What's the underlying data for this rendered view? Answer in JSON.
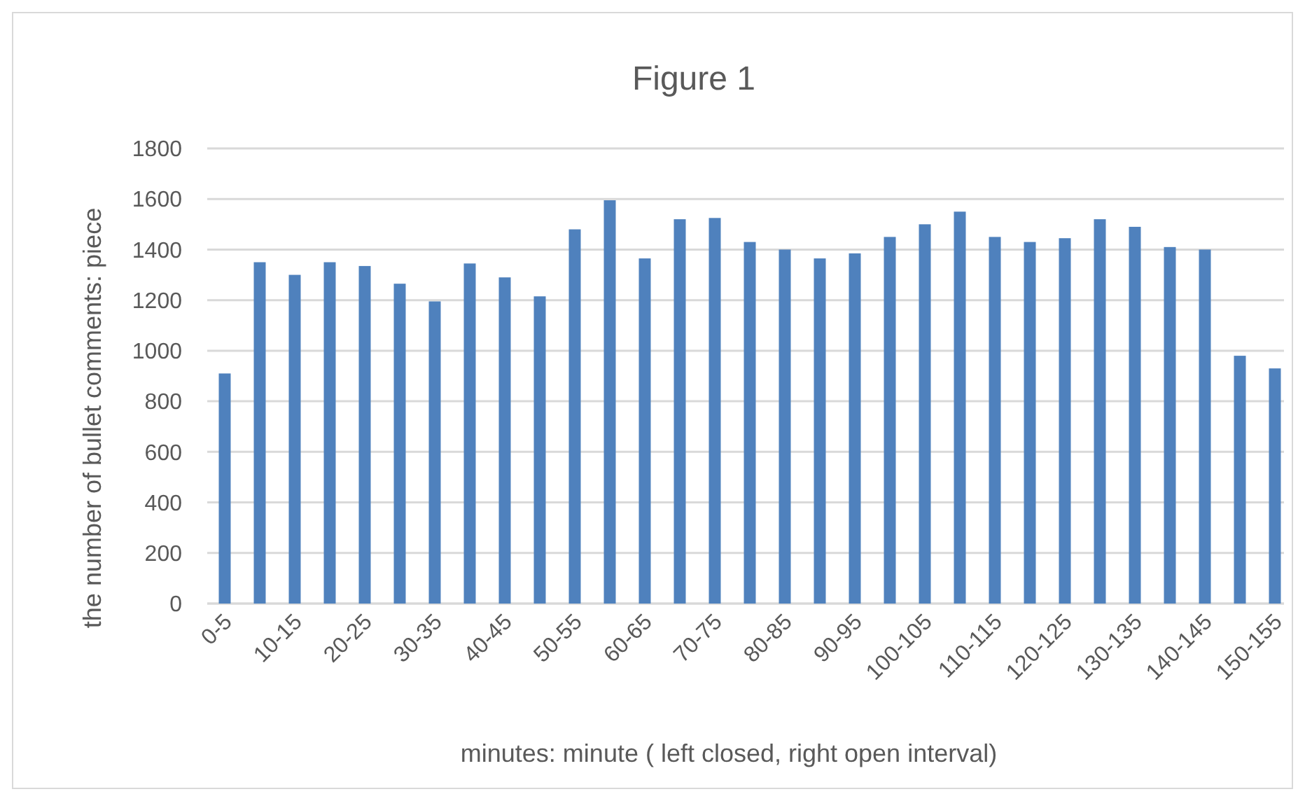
{
  "chart_data": {
    "type": "bar",
    "title": "Figure 1",
    "xlabel": "minutes: minute ( left closed, right open interval)",
    "ylabel": "the number of bullet comments: piece",
    "categories": [
      "0-5",
      null,
      "10-15",
      null,
      "20-25",
      null,
      "30-35",
      null,
      "40-45",
      null,
      "50-55",
      null,
      "60-65",
      null,
      "70-75",
      null,
      "80-85",
      null,
      "90-95",
      null,
      "100-105",
      null,
      "110-115",
      null,
      "120-125",
      null,
      "130-135",
      null,
      "140-145",
      null,
      "150-155"
    ],
    "values": [
      910,
      1350,
      1300,
      1350,
      1335,
      1265,
      1195,
      1345,
      1290,
      1215,
      1480,
      1595,
      1365,
      1520,
      1525,
      1430,
      1400,
      1365,
      1385,
      1450,
      1500,
      1550,
      1450,
      1430,
      1445,
      1520,
      1490,
      1410,
      1400,
      980,
      930
    ],
    "color": "#4f81bd",
    "ylim": [
      0,
      1800
    ],
    "yticks": [
      0,
      200,
      400,
      600,
      800,
      1000,
      1200,
      1400,
      1600,
      1800
    ],
    "grid": "y"
  }
}
